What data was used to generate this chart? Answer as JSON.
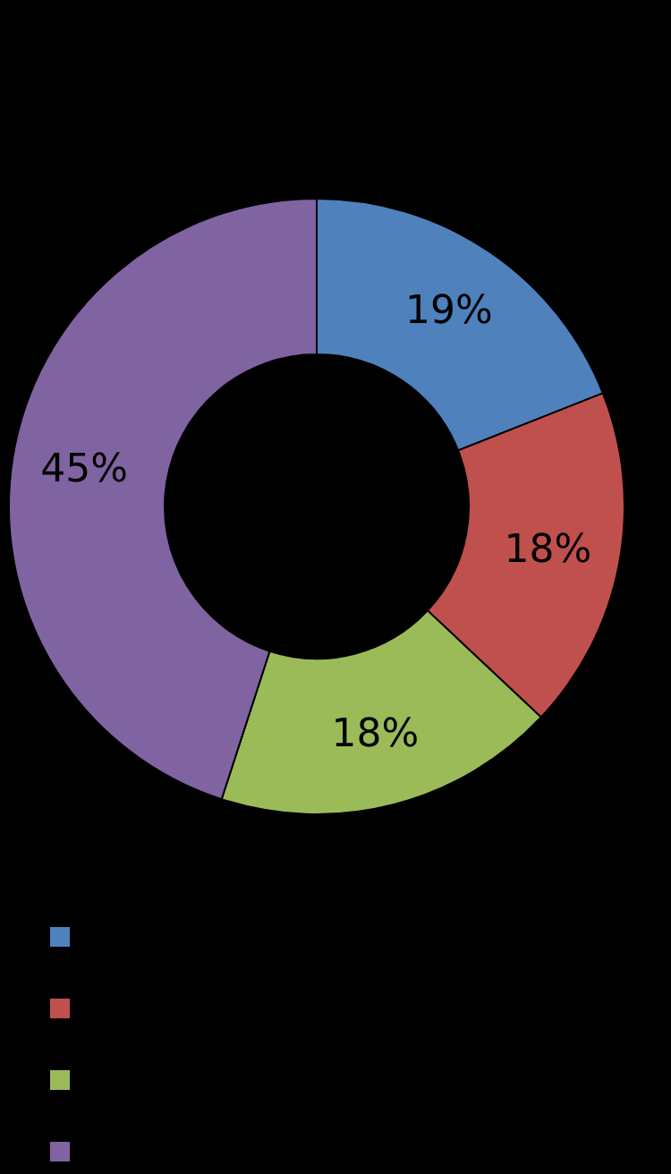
{
  "chart_data": {
    "type": "donut",
    "categories": [
      null,
      null,
      null,
      null
    ],
    "values": [
      19,
      18,
      18,
      45
    ],
    "colors": [
      "#4f81bd",
      "#c0504d",
      "#9bbb59",
      "#8064a2"
    ],
    "value_labels": [
      "19%",
      "18%",
      "18%",
      "45%"
    ]
  }
}
